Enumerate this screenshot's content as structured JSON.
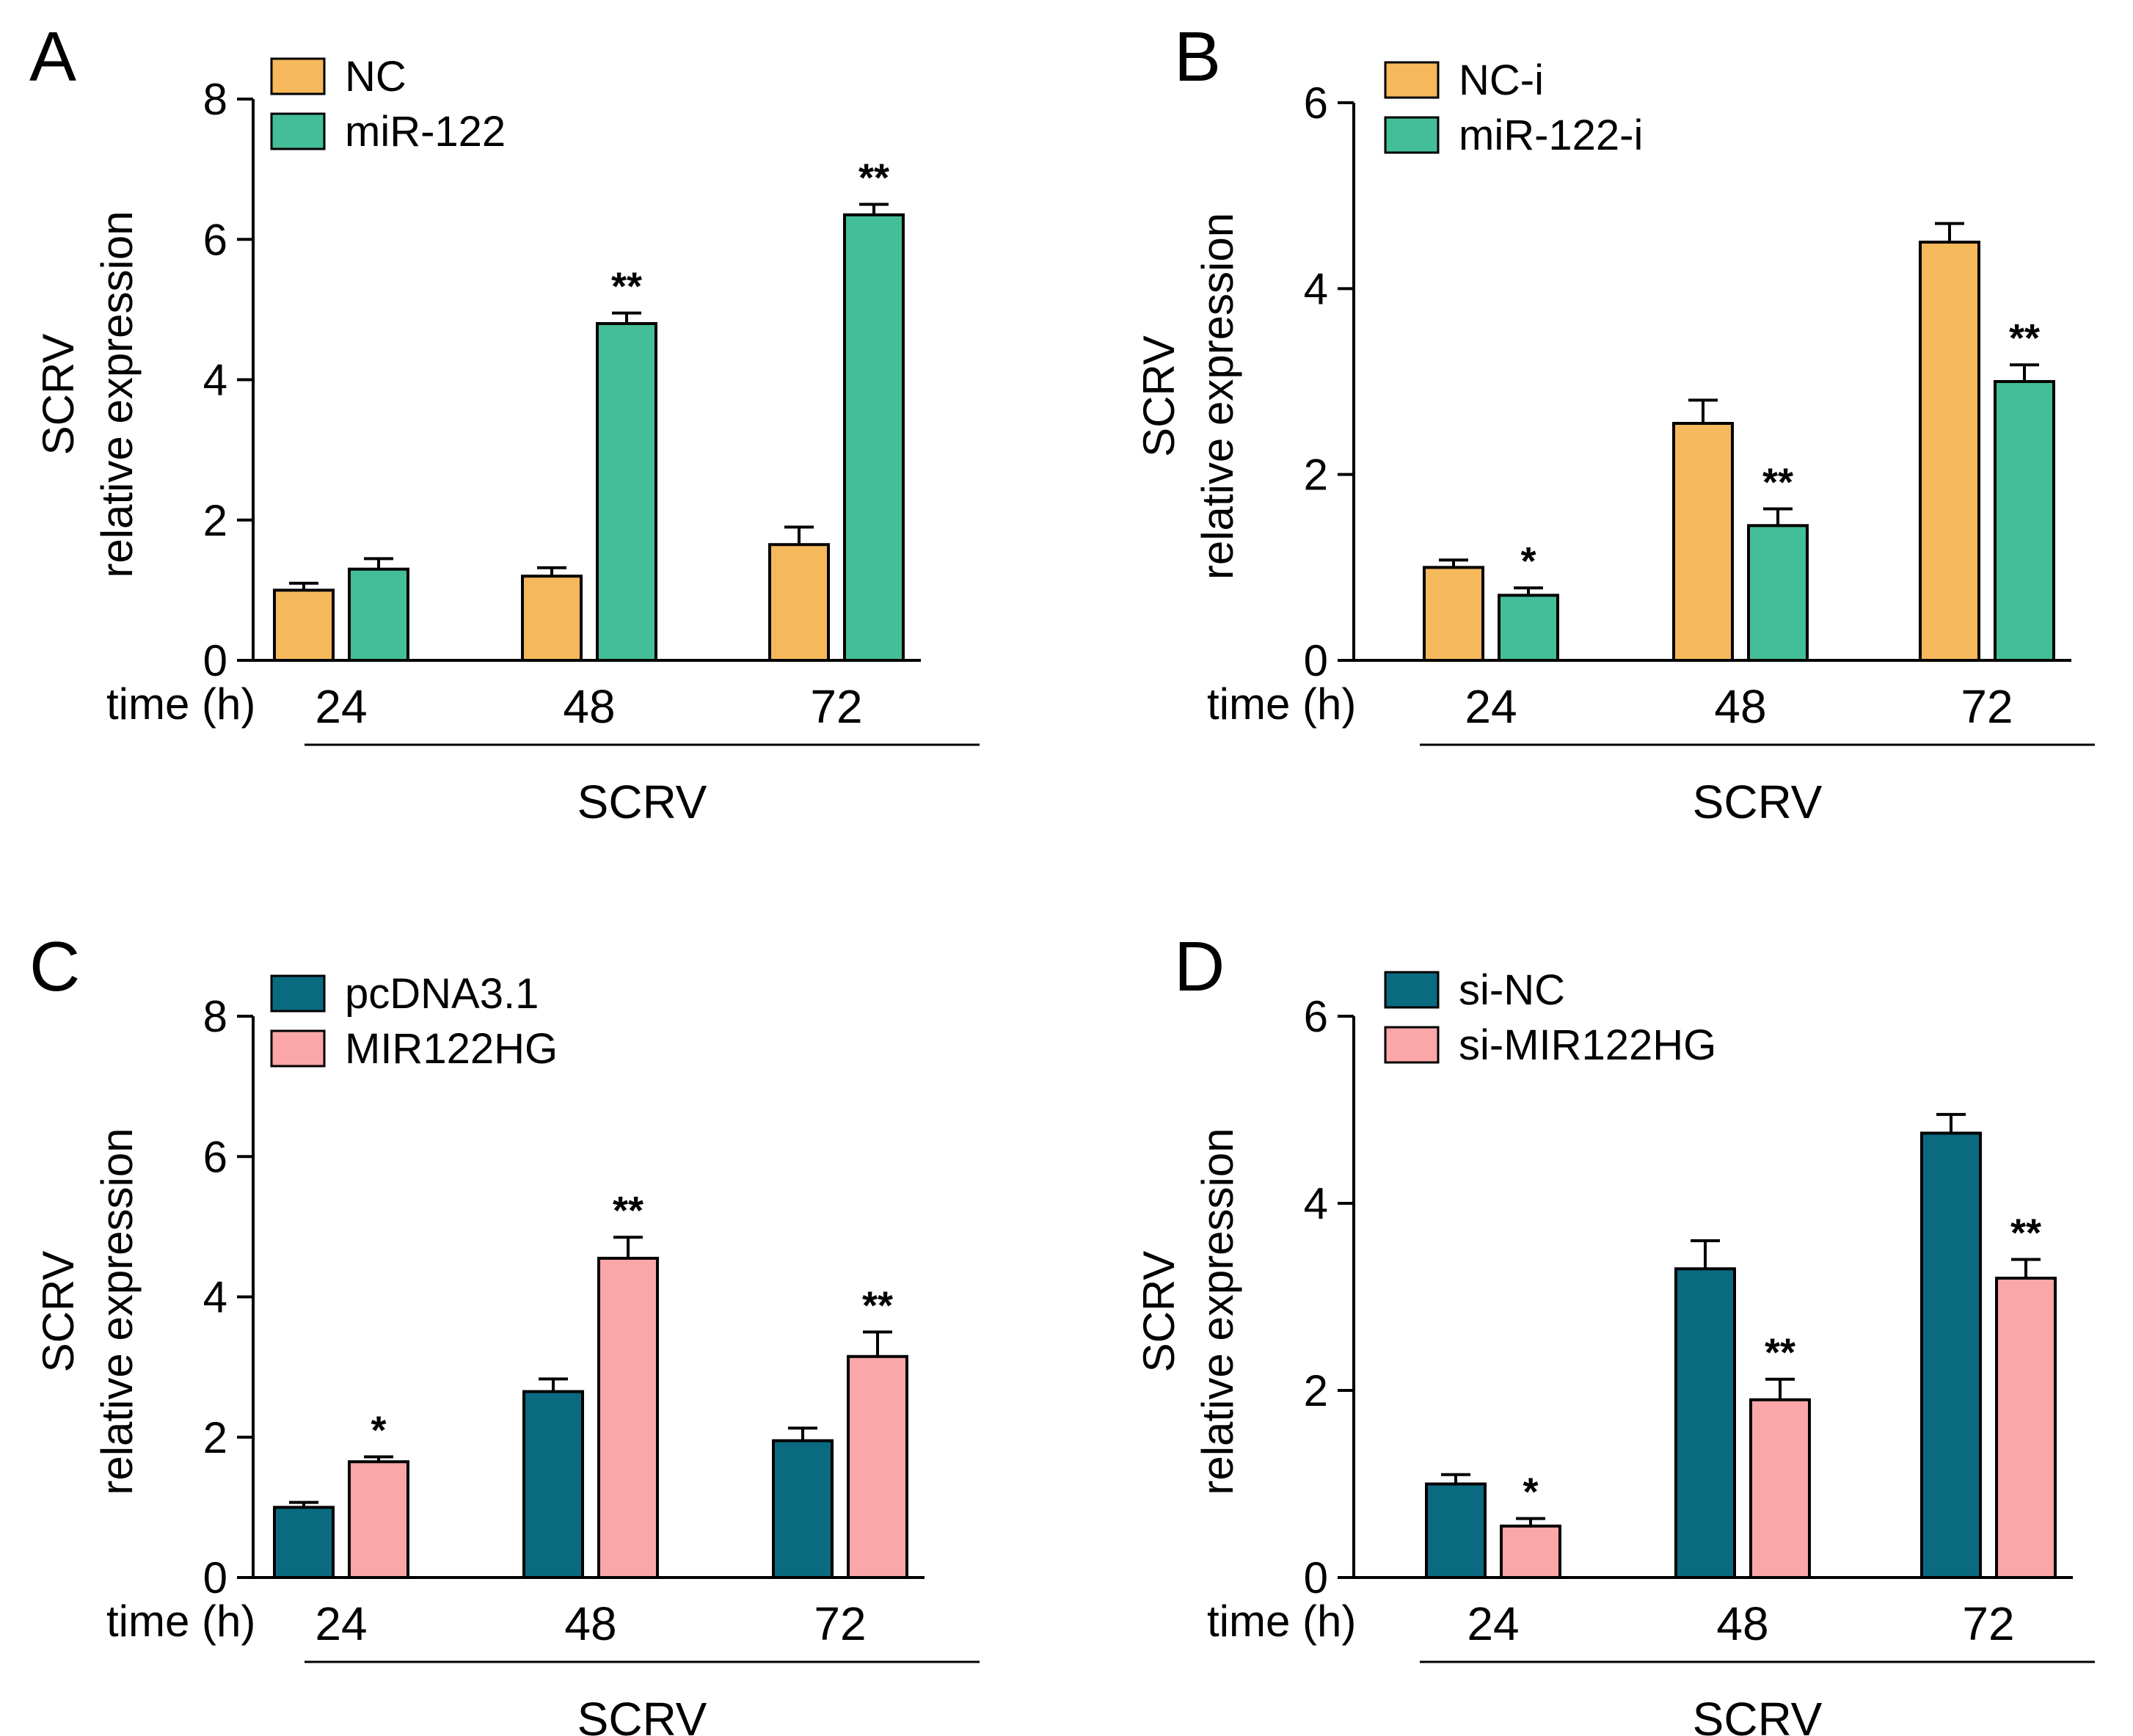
{
  "chart_data": [
    {
      "type": "bar",
      "panel": "A",
      "categories": [
        "24",
        "48",
        "72"
      ],
      "series": [
        {
          "name": "NC",
          "color": "#F5B85B",
          "values": [
            1.0,
            1.2,
            1.65
          ],
          "errors": [
            0.1,
            0.12,
            0.25
          ]
        },
        {
          "name": "miR-122",
          "color": "#44BD99",
          "values": [
            1.3,
            4.8,
            6.35
          ],
          "errors": [
            0.15,
            0.15,
            0.15
          ]
        }
      ],
      "significance": [
        {
          "series": 1,
          "category": 1,
          "text": "**"
        },
        {
          "series": 1,
          "category": 2,
          "text": "**"
        }
      ],
      "ylabel": [
        "SCRV",
        "relative expression"
      ],
      "xlabel": "time (h)",
      "group_label": "SCRV",
      "ylim": [
        0,
        8
      ],
      "yticks": [
        0,
        2,
        4,
        6,
        8
      ],
      "legend": "top-left"
    },
    {
      "type": "bar",
      "panel": "B",
      "categories": [
        "24",
        "48",
        "72"
      ],
      "series": [
        {
          "name": "NC-i",
          "color": "#F5B85B",
          "values": [
            1.0,
            2.55,
            4.5
          ],
          "errors": [
            0.08,
            0.25,
            0.2
          ]
        },
        {
          "name": "miR-122-i",
          "color": "#44BD99",
          "values": [
            0.7,
            1.45,
            3.0
          ],
          "errors": [
            0.08,
            0.18,
            0.18
          ]
        }
      ],
      "significance": [
        {
          "series": 1,
          "category": 0,
          "text": "*"
        },
        {
          "series": 1,
          "category": 1,
          "text": "**"
        },
        {
          "series": 1,
          "category": 2,
          "text": "**"
        }
      ],
      "ylabel": [
        "SCRV",
        "relative expression"
      ],
      "xlabel": "time (h)",
      "group_label": "SCRV",
      "ylim": [
        0,
        6
      ],
      "yticks": [
        0,
        2,
        4,
        6
      ],
      "legend": "top-left"
    },
    {
      "type": "bar",
      "panel": "C",
      "categories": [
        "24",
        "48",
        "72"
      ],
      "series": [
        {
          "name": "pcDNA3.1",
          "color": "#0A6A80",
          "values": [
            1.0,
            2.65,
            1.95
          ],
          "errors": [
            0.07,
            0.18,
            0.18
          ]
        },
        {
          "name": "MIR122HG",
          "color": "#FBA6A8",
          "values": [
            1.65,
            4.55,
            3.15
          ],
          "errors": [
            0.07,
            0.3,
            0.35
          ]
        }
      ],
      "significance": [
        {
          "series": 1,
          "category": 0,
          "text": "*"
        },
        {
          "series": 1,
          "category": 1,
          "text": "**"
        },
        {
          "series": 1,
          "category": 2,
          "text": "**"
        }
      ],
      "ylabel": [
        "SCRV",
        "relative expression"
      ],
      "xlabel": "time (h)",
      "group_label": "SCRV",
      "ylim": [
        0,
        8
      ],
      "yticks": [
        0,
        2,
        4,
        6,
        8
      ],
      "legend": "top-left"
    },
    {
      "type": "bar",
      "panel": "D",
      "categories": [
        "24",
        "48",
        "72"
      ],
      "series": [
        {
          "name": "si-NC",
          "color": "#0A6A80",
          "values": [
            1.0,
            3.3,
            4.75
          ],
          "errors": [
            0.1,
            0.3,
            0.2
          ]
        },
        {
          "name": "si-MIR122HG",
          "color": "#FBA6A8",
          "values": [
            0.55,
            1.9,
            3.2
          ],
          "errors": [
            0.08,
            0.22,
            0.2
          ]
        }
      ],
      "significance": [
        {
          "series": 1,
          "category": 0,
          "text": "*"
        },
        {
          "series": 1,
          "category": 1,
          "text": "**"
        },
        {
          "series": 1,
          "category": 2,
          "text": "**"
        }
      ],
      "ylabel": [
        "SCRV",
        "relative expression"
      ],
      "xlabel": "time (h)",
      "group_label": "SCRV",
      "ylim": [
        0,
        6
      ],
      "yticks": [
        0,
        2,
        4,
        6
      ],
      "legend": "top-left"
    }
  ]
}
